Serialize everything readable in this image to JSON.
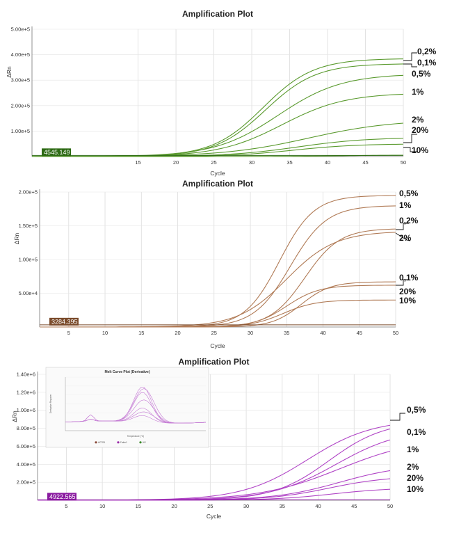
{
  "chart_data": [
    {
      "type": "line",
      "title": "Amplification Plot",
      "xlabel": "Cycle",
      "ylabel": "ΔRn",
      "xlim": [
        1,
        50
      ],
      "ylim": [
        0,
        500000
      ],
      "x_ticks": [
        15,
        20,
        25,
        30,
        35,
        40,
        45,
        50
      ],
      "y_ticks": [
        "1.00e+5",
        "2.00e+5",
        "3.00e+5",
        "4.00e+5",
        "5.00e+5"
      ],
      "y_tick_values": [
        100000,
        200000,
        300000,
        400000,
        500000
      ],
      "threshold_label": "4545.149",
      "threshold_value": 4545.149,
      "color": "#5a9a2e",
      "threshold_color": "#2d6a14",
      "series": [
        {
          "name": "0,2%",
          "ct": 31.5,
          "plateau": 385000,
          "k": 0.3
        },
        {
          "name": "0,1%",
          "ct": 31.8,
          "plateau": 365000,
          "k": 0.3
        },
        {
          "name": "0,5%",
          "ct": 33.5,
          "plateau": 325000,
          "k": 0.24
        },
        {
          "name": "1%",
          "ct": 34.0,
          "plateau": 250000,
          "k": 0.24
        },
        {
          "name": "2%",
          "ct": 37.5,
          "plateau": 145000,
          "k": 0.18
        },
        {
          "name": "20%",
          "ct": 36.0,
          "plateau": 75000,
          "k": 0.22
        },
        {
          "name": "10%",
          "ct": 35.5,
          "plateau": 50000,
          "k": 0.24
        },
        {
          "name": "",
          "ct": 42.0,
          "plateau": 6000,
          "k": 0.3
        }
      ],
      "callouts": [
        "0,2%",
        "0,1%",
        "0,5%",
        "1%",
        "2%",
        "20%",
        "10%"
      ]
    },
    {
      "type": "line",
      "title": "Amplification Plot",
      "xlabel": "Cycle",
      "ylabel": "ΔRn",
      "xlim": [
        1,
        50
      ],
      "ylim": [
        0,
        200000
      ],
      "x_ticks": [
        5,
        10,
        15,
        20,
        25,
        30,
        35,
        40,
        45,
        50
      ],
      "y_ticks": [
        "5.00e+4",
        "1.00e+5",
        "1.50e+5",
        "2.00e+5"
      ],
      "y_tick_values": [
        50000,
        100000,
        150000,
        200000
      ],
      "threshold_label": "3284.395",
      "threshold_value": 3284.395,
      "color": "#b07a55",
      "threshold_color": "#7a4a2a",
      "series": [
        {
          "name": "0,5%",
          "ct": 34.0,
          "plateau": 195000,
          "k": 0.42
        },
        {
          "name": "1%",
          "ct": 35.5,
          "plateau": 180000,
          "k": 0.4
        },
        {
          "name": "0,2%",
          "ct": 37.5,
          "plateau": 146000,
          "k": 0.42
        },
        {
          "name": "2%",
          "ct": 35.0,
          "plateau": 142000,
          "k": 0.3
        },
        {
          "name": "0,1%",
          "ct": 37.0,
          "plateau": 67000,
          "k": 0.5
        },
        {
          "name": "20%",
          "ct": 35.0,
          "plateau": 62000,
          "k": 0.45
        },
        {
          "name": "10%",
          "ct": 34.5,
          "plateau": 40000,
          "k": 0.45
        }
      ],
      "callouts": [
        "0,5%",
        "1%",
        "0,2%",
        "2%",
        "0,1%",
        "20%",
        "10%"
      ]
    },
    {
      "type": "line",
      "title": "Amplification Plot",
      "xlabel": "Cycle",
      "ylabel": "ΔRn",
      "xlim": [
        1,
        50
      ],
      "ylim": [
        0,
        1400000
      ],
      "x_ticks": [
        5,
        10,
        15,
        20,
        25,
        30,
        35,
        40,
        45,
        50
      ],
      "y_ticks": [
        "2.00e+5",
        "4.00e+5",
        "6.00e+5",
        "8.00e+5",
        "1.00e+6",
        "1.20e+6",
        "1.40e+6"
      ],
      "y_tick_values": [
        200000,
        400000,
        600000,
        800000,
        1000000,
        1200000,
        1400000
      ],
      "threshold_label": "4922.565",
      "threshold_value": 4922.565,
      "color": "#b044c6",
      "threshold_color": "#8a1aa0",
      "series": [
        {
          "name": "0,5%",
          "ct": 38.5,
          "plateau": 900000,
          "k": 0.22
        },
        {
          "name": "",
          "ct": 41.5,
          "plateau": 880000,
          "k": 0.26
        },
        {
          "name": "0,1%",
          "ct": 42.5,
          "plateau": 800000,
          "k": 0.22
        },
        {
          "name": "1%",
          "ct": 43.0,
          "plateau": 700000,
          "k": 0.18
        },
        {
          "name": "2%",
          "ct": 43.0,
          "plateau": 400000,
          "k": 0.22
        },
        {
          "name": "20%",
          "ct": 41.5,
          "plateau": 270000,
          "k": 0.24
        },
        {
          "name": "10%",
          "ct": 42.0,
          "plateau": 140000,
          "k": 0.24
        }
      ],
      "callouts": [
        "0,5%",
        "0,1%",
        "1%",
        "2%",
        "20%",
        "10%"
      ],
      "inset": {
        "title": "Melt Curve Plot (Derivative)",
        "xlabel": "Temperature (°C)",
        "ylabel": "Derivative Reporter",
        "legend": [
          "ACTB1",
          "Fatim1",
          "HG"
        ],
        "legend_colors": [
          "#8a4a3a",
          "#9a2aa8",
          "#3a8a2a"
        ]
      }
    }
  ]
}
